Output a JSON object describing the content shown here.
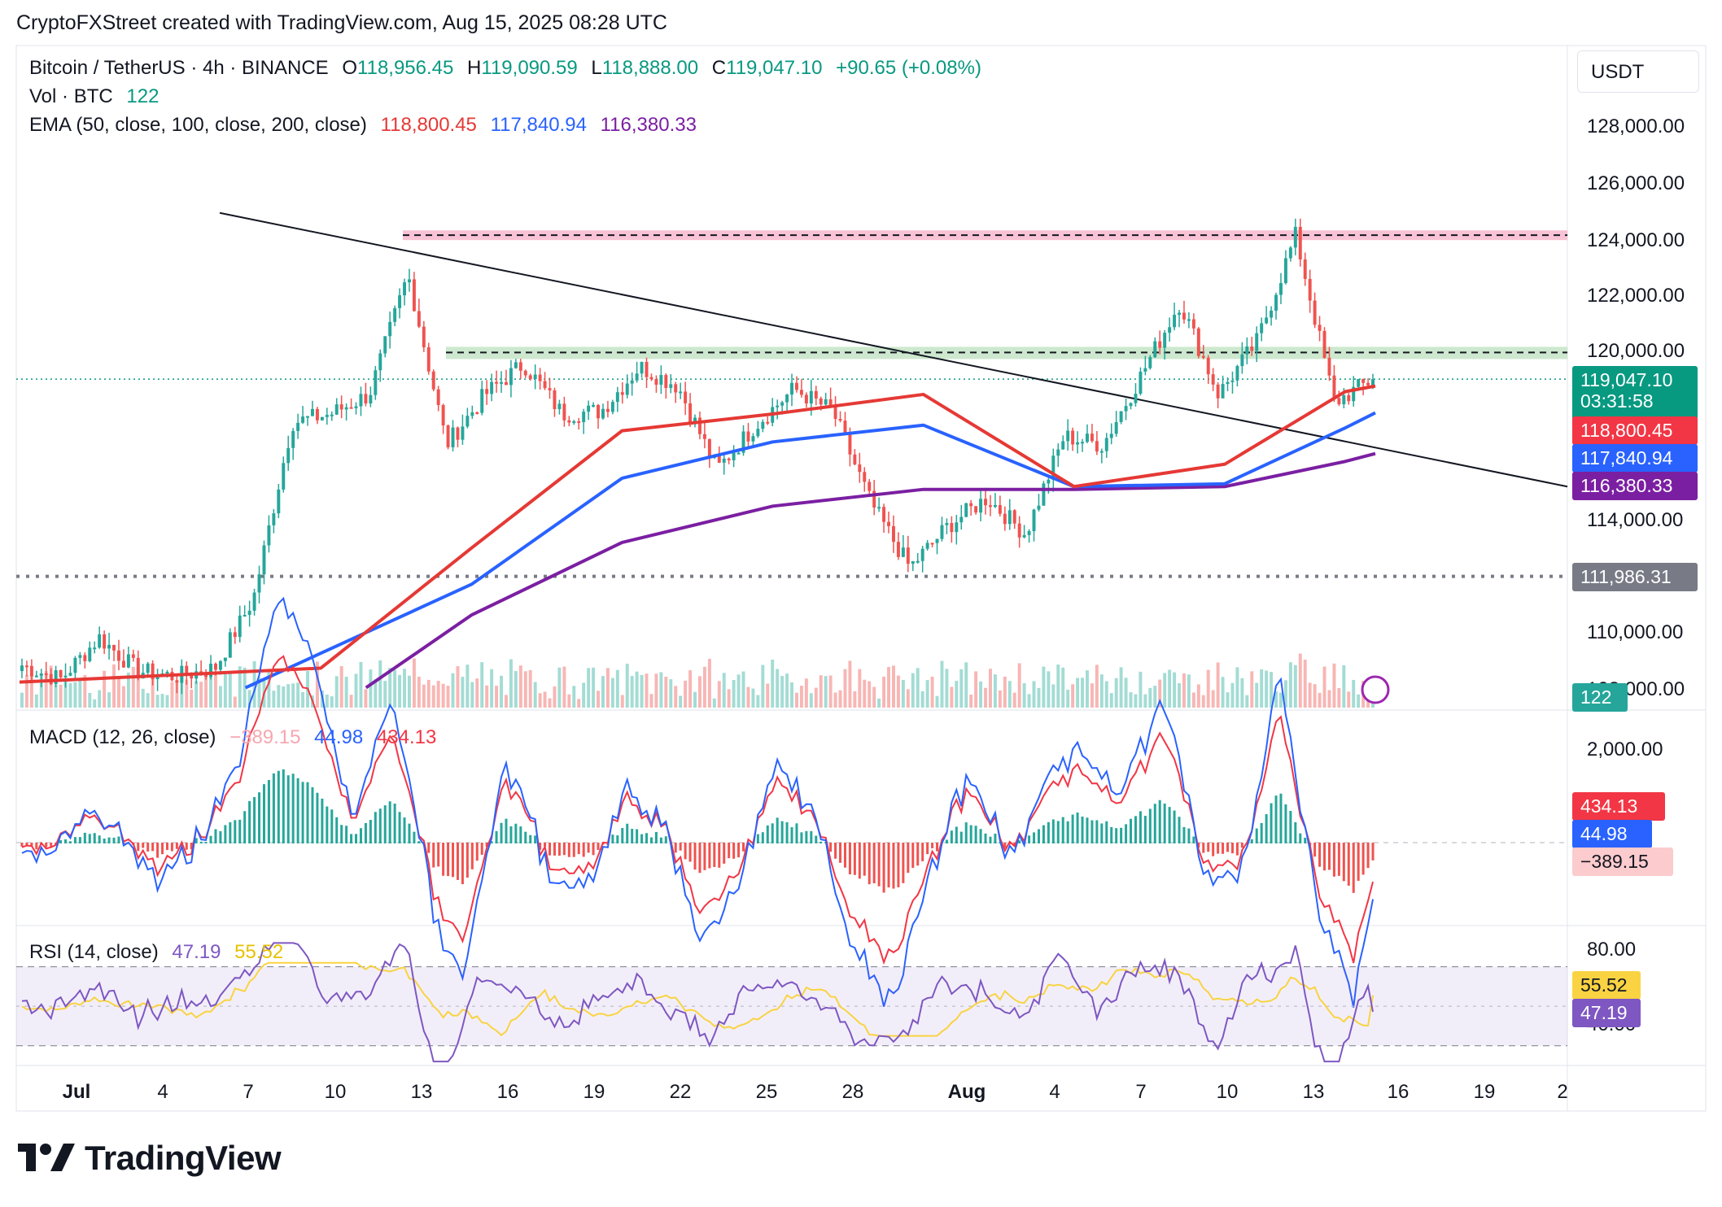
{
  "caption": "CryptoFXStreet created with TradingView.com, Aug 15, 2025 08:28 UTC",
  "header": {
    "symbol": "Bitcoin / TetherUS · 4h · BINANCE",
    "open_label": "O",
    "open": "118,956.45",
    "high_label": "H",
    "high": "119,090.59",
    "low_label": "L",
    "low": "118,888.00",
    "close_label": "C",
    "close": "119,047.10",
    "change": "+90.65 (+0.08%)",
    "vol_label": "Vol · BTC",
    "vol_value": "122",
    "ema_label": "EMA (50, close, 100, close, 200, close)",
    "ema50": "118,800.45",
    "ema100": "117,840.94",
    "ema200": "116,380.33"
  },
  "currency": "USDT",
  "price_axis_labels": [
    "128,000.00",
    "126,000.00",
    "124,000.00",
    "122,000.00",
    "120,000.00",
    "114,000.00",
    "110,000.00",
    "108,000.00"
  ],
  "price_tags": {
    "last": "119,047.10",
    "countdown": "03:31:58",
    "ema50": "118,800.45",
    "ema100": "117,840.94",
    "ema200": "116,380.33",
    "support": "111,986.31",
    "volume": "122"
  },
  "macd": {
    "label": "MACD (12, 26, close)",
    "hist": "−389.15",
    "macd": "44.98",
    "signal": "434.13",
    "axis": "2,000.00",
    "tag_signal": "434.13",
    "tag_macd": "44.98",
    "tag_hist": "−389.15"
  },
  "rsi": {
    "label": "RSI (14, close)",
    "rsi": "47.19",
    "ma": "55.52",
    "axis_top": "80.00",
    "axis_bottom": "40.00",
    "tag_ma": "55.52",
    "tag_rsi": "47.19"
  },
  "time_axis": [
    "Jul",
    "4",
    "7",
    "10",
    "13",
    "16",
    "19",
    "22",
    "25",
    "28",
    "Aug",
    "4",
    "7",
    "10",
    "13",
    "16",
    "19",
    "2"
  ],
  "logo": "TradingView",
  "colors": {
    "up": "#26a69a",
    "down": "#ef5350",
    "ema50": "#e53935",
    "ema100": "#2962ff",
    "ema200": "#7b1fa2",
    "resistance_zone": "#f8bbd0",
    "support_zone": "#c8e6c9",
    "price_tag": "#089981",
    "macd_line": "#2962ff",
    "signal_line": "#f23645"
  },
  "chart_data": {
    "type": "candlestick",
    "title": "Bitcoin / TetherUS · 4h · BINANCE",
    "x_range": [
      "Jul",
      "Aug 20"
    ],
    "ylim": [
      108000,
      130000
    ],
    "levels": {
      "resistance": 124200,
      "range_top": 120000,
      "support": 111986.31,
      "last_price": 119047.1
    },
    "trendline": {
      "from": [
        "Jun 30",
        125000
      ],
      "to": [
        "Aug 20",
        115200
      ]
    },
    "price_path": [
      [
        "Jun 30",
        108800
      ],
      [
        "Jul 2",
        108300
      ],
      [
        "Jul 4",
        109800
      ],
      [
        "Jul 6",
        108600
      ],
      [
        "Jul 8",
        108400
      ],
      [
        "Jul 9",
        108700
      ],
      [
        "Jul 10",
        111200
      ],
      [
        "Jul 11",
        117500
      ],
      [
        "Jul 12",
        117800
      ],
      [
        "Jul 13",
        118500
      ],
      [
        "Jul 14",
        122800
      ],
      [
        "Jul 15",
        116700
      ],
      [
        "Jul 16",
        118500
      ],
      [
        "Jul 18",
        119600
      ],
      [
        "Jul 19",
        117800
      ],
      [
        "Jul 21",
        117900
      ],
      [
        "Jul 22",
        119500
      ],
      [
        "Jul 24",
        118800
      ],
      [
        "Jul 25",
        115800
      ],
      [
        "Jul 26",
        117400
      ],
      [
        "Jul 28",
        118700
      ],
      [
        "Jul 30",
        117900
      ],
      [
        "Aug 1",
        114600
      ],
      [
        "Aug 2",
        112300
      ],
      [
        "Aug 3",
        113800
      ],
      [
        "Aug 4",
        114800
      ],
      [
        "Aug 6",
        113500
      ],
      [
        "Aug 7",
        117000
      ],
      [
        "Aug 8",
        116700
      ],
      [
        "Aug 10",
        119200
      ],
      [
        "Aug 11",
        121800
      ],
      [
        "Aug 12",
        118500
      ],
      [
        "Aug 13",
        120400
      ],
      [
        "Aug 14",
        124200
      ],
      [
        "Aug 14b",
        118200
      ],
      [
        "Aug 15",
        119047.1
      ]
    ],
    "ema50": [
      [
        0.0,
        108200
      ],
      [
        0.2,
        108700
      ],
      [
        0.3,
        113000
      ],
      [
        0.4,
        117200
      ],
      [
        0.5,
        117800
      ],
      [
        0.6,
        118500
      ],
      [
        0.7,
        115200
      ],
      [
        0.8,
        116000
      ],
      [
        0.88,
        118600
      ],
      [
        0.9,
        118800
      ]
    ],
    "ema100": [
      [
        0.15,
        108000
      ],
      [
        0.3,
        111700
      ],
      [
        0.4,
        115500
      ],
      [
        0.5,
        116800
      ],
      [
        0.6,
        117400
      ],
      [
        0.7,
        115200
      ],
      [
        0.8,
        115300
      ],
      [
        0.88,
        117300
      ],
      [
        0.9,
        117840
      ]
    ],
    "ema200": [
      [
        0.23,
        108000
      ],
      [
        0.3,
        110600
      ],
      [
        0.4,
        113200
      ],
      [
        0.5,
        114500
      ],
      [
        0.6,
        115100
      ],
      [
        0.7,
        115100
      ],
      [
        0.8,
        115200
      ],
      [
        0.88,
        116100
      ],
      [
        0.9,
        116380
      ]
    ],
    "macd_values": {
      "macd": 44.98,
      "signal": 434.13,
      "hist": -389.15
    },
    "rsi_values": {
      "rsi": 47.19,
      "ma": 55.52,
      "upper": 70,
      "lower": 30
    }
  }
}
